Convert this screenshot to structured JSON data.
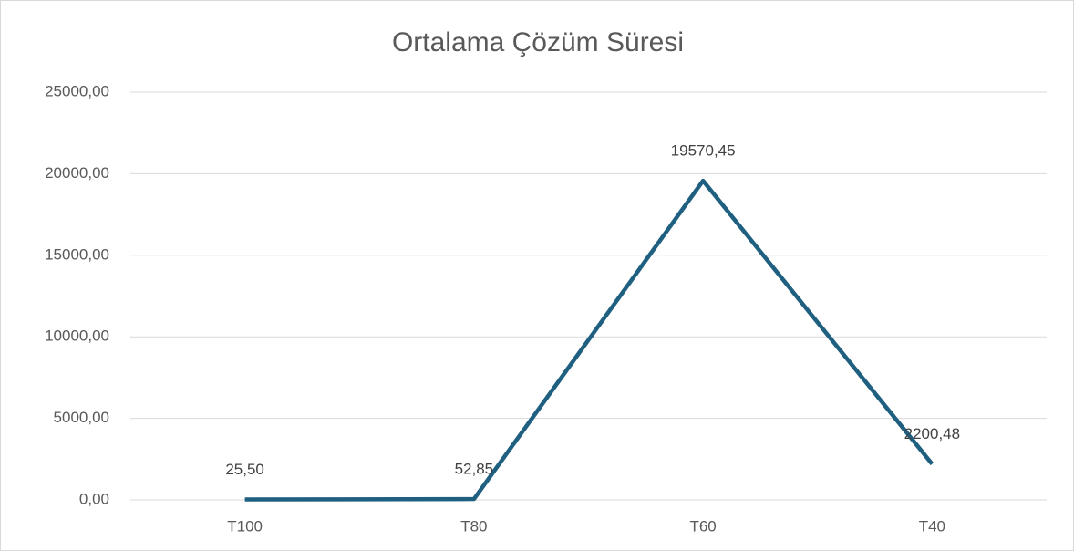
{
  "chart_data": {
    "type": "line",
    "title": "Ortalama Çözüm Süresi",
    "categories": [
      "T100",
      "T80",
      "T60",
      "T40"
    ],
    "values": [
      25.5,
      52.85,
      19570.45,
      2200.48
    ],
    "value_labels": [
      "25,50",
      "52,85",
      "19570,45",
      "2200,48"
    ],
    "color": "#1f5f80",
    "ylim": [
      0,
      25000
    ],
    "yticks": [
      {
        "value": 0,
        "label": "0,00"
      },
      {
        "value": 5000,
        "label": "5000,00"
      },
      {
        "value": 10000,
        "label": "10000,00"
      },
      {
        "value": 15000,
        "label": "15000,00"
      },
      {
        "value": 20000,
        "label": "20000,00"
      },
      {
        "value": 25000,
        "label": "25000,00"
      }
    ],
    "grid": true
  }
}
